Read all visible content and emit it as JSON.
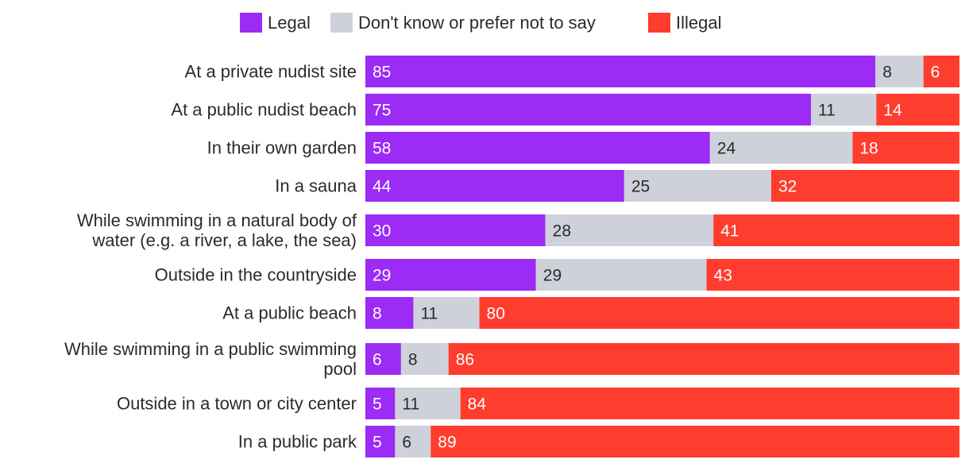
{
  "chart_data": {
    "type": "bar",
    "orientation": "horizontal",
    "stacked": true,
    "title": "",
    "xlabel": "",
    "ylabel": "",
    "xlim": [
      0,
      100
    ],
    "grid": false,
    "legend_position": "top-center",
    "categories": [
      [
        "At a private nudist site"
      ],
      [
        "At a public nudist beach"
      ],
      [
        "In their own garden"
      ],
      [
        "In a sauna"
      ],
      [
        "While swimming in a natural body of",
        "water (e.g. a river, a lake, the sea)"
      ],
      [
        "Outside in the countryside"
      ],
      [
        "At a public beach"
      ],
      [
        "While swimming in a public swimming",
        "pool"
      ],
      [
        "Outside in a town or city center"
      ],
      [
        "In a public park"
      ]
    ],
    "series": [
      {
        "name": "Legal",
        "color": "#9b2bf5",
        "label_color": "#ffffff",
        "values": [
          85,
          75,
          58,
          44,
          30,
          29,
          8,
          6,
          5,
          5
        ]
      },
      {
        "name": "Don't know or prefer not to say",
        "color": "#cfd1da",
        "label_color": "#2b2b2b",
        "values": [
          8,
          11,
          24,
          25,
          28,
          29,
          11,
          8,
          11,
          6
        ]
      },
      {
        "name": "Illegal",
        "color": "#ff3d2e",
        "label_color": "#ffffff",
        "values": [
          6,
          14,
          18,
          32,
          41,
          43,
          80,
          86,
          84,
          89
        ]
      }
    ]
  }
}
